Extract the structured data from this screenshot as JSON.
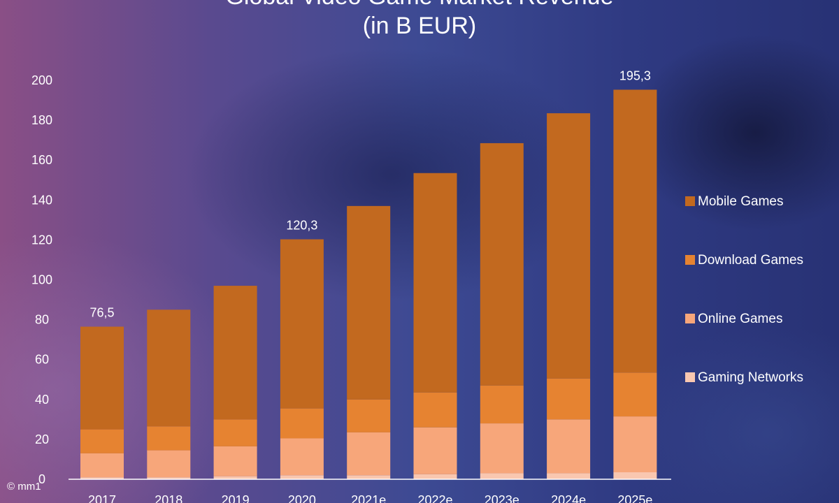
{
  "title": {
    "line1": "Global Video Game Market Revenue",
    "line2": "(in B EUR)"
  },
  "watermark": "© mm1",
  "chart_data": {
    "type": "bar",
    "stacked": true,
    "title": "Global Video Game Market Revenue (in B EUR)",
    "categories": [
      "2017",
      "2018",
      "2019",
      "2020",
      "2021e",
      "2022e",
      "2023e",
      "2024e",
      "2025e"
    ],
    "ylim": [
      0,
      200
    ],
    "yticks": [
      0,
      20,
      40,
      60,
      80,
      100,
      120,
      140,
      160,
      180,
      200
    ],
    "grid": false,
    "legend_position": "right",
    "series": [
      {
        "name": "Gaming Networks",
        "color": "#f9c7b0",
        "values": [
          1,
          1,
          1.5,
          2,
          2,
          2.5,
          3,
          3,
          3.5
        ]
      },
      {
        "name": "Online Games",
        "color": "#f7a67a",
        "values": [
          12,
          13.5,
          15,
          18.5,
          21.5,
          23.5,
          25,
          27,
          28
        ]
      },
      {
        "name": "Download Games",
        "color": "#e68331",
        "values": [
          12,
          12,
          13.5,
          15,
          16.5,
          17.5,
          19,
          20.5,
          22
        ]
      },
      {
        "name": "Mobile Games",
        "color": "#c2691f",
        "values": [
          51.5,
          58.5,
          67,
          84.8,
          97,
          110,
          121.5,
          133,
          141.8
        ]
      }
    ],
    "data_labels": [
      {
        "category": "2017",
        "text": "76,5"
      },
      {
        "category": "2020",
        "text": "120,3"
      },
      {
        "category": "2025e",
        "text": "195,3"
      }
    ]
  }
}
